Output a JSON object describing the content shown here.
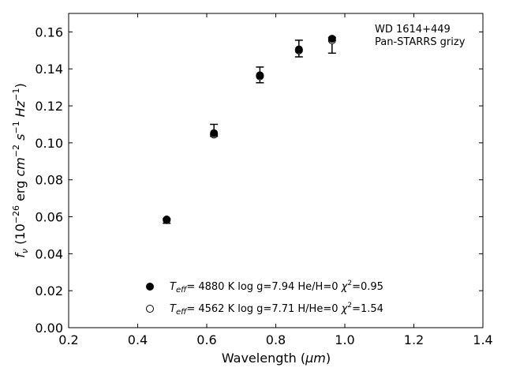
{
  "chart_data": {
    "type": "scatter",
    "xlabel_text": "Wavelength (",
    "xlabel_unit": "μm",
    "xlabel_close": ")",
    "ylabel_f": "f",
    "ylabel_nu": "ν",
    "ylabel_open": " (10",
    "ylabel_exp": "−26",
    "ylabel_erg": " erg ",
    "ylabel_cm": "cm",
    "ylabel_cm_exp": "−2",
    "ylabel_s": "s",
    "ylabel_s_exp": "−1",
    "ylabel_hz": "Hz",
    "ylabel_hz_exp": "−1",
    "ylabel_close": ")",
    "xlim": [
      0.2,
      1.4
    ],
    "ylim": [
      0.0,
      0.17
    ],
    "x_ticks": [
      "0.2",
      "0.4",
      "0.6",
      "0.8",
      "1.0",
      "1.2",
      "1.4"
    ],
    "y_ticks": [
      "0.00",
      "0.02",
      "0.04",
      "0.06",
      "0.08",
      "0.10",
      "0.12",
      "0.14",
      "0.16"
    ],
    "annotation": [
      "WD 1614+449",
      "Pan-STARRS grizy"
    ],
    "observed": {
      "x": [
        0.484,
        0.621,
        0.754,
        0.867,
        0.963
      ],
      "y": [
        0.0582,
        0.1052,
        0.1365,
        0.1505,
        0.1563
      ],
      "err_low": [
        0.0565,
        0.1035,
        0.1325,
        0.1465,
        0.1485
      ],
      "err_high": [
        0.059,
        0.11,
        0.141,
        0.1555,
        0.157
      ]
    },
    "series": [
      {
        "marker": "filled",
        "x": [
          0.484,
          0.621,
          0.754,
          0.867,
          0.963
        ],
        "y": [
          0.0582,
          0.1052,
          0.1365,
          0.1505,
          0.1563
        ],
        "legend_teff": "T",
        "legend_sub": "eff",
        "legend_text": "=  4880 K  log g=7.94  He/H=0  ",
        "legend_chi": "χ",
        "legend_chi_exp": "2",
        "legend_chi_val": "=0.95"
      },
      {
        "marker": "open",
        "x": [
          0.484,
          0.621,
          0.754,
          0.867,
          0.963
        ],
        "y": [
          0.0585,
          0.1045,
          0.136,
          0.15,
          0.1555
        ],
        "legend_teff": "T",
        "legend_sub": "eff",
        "legend_text": "=  4562 K  log g=7.71  H/He=0  ",
        "legend_chi": "χ",
        "legend_chi_exp": "2",
        "legend_chi_val": "=1.54"
      }
    ]
  }
}
